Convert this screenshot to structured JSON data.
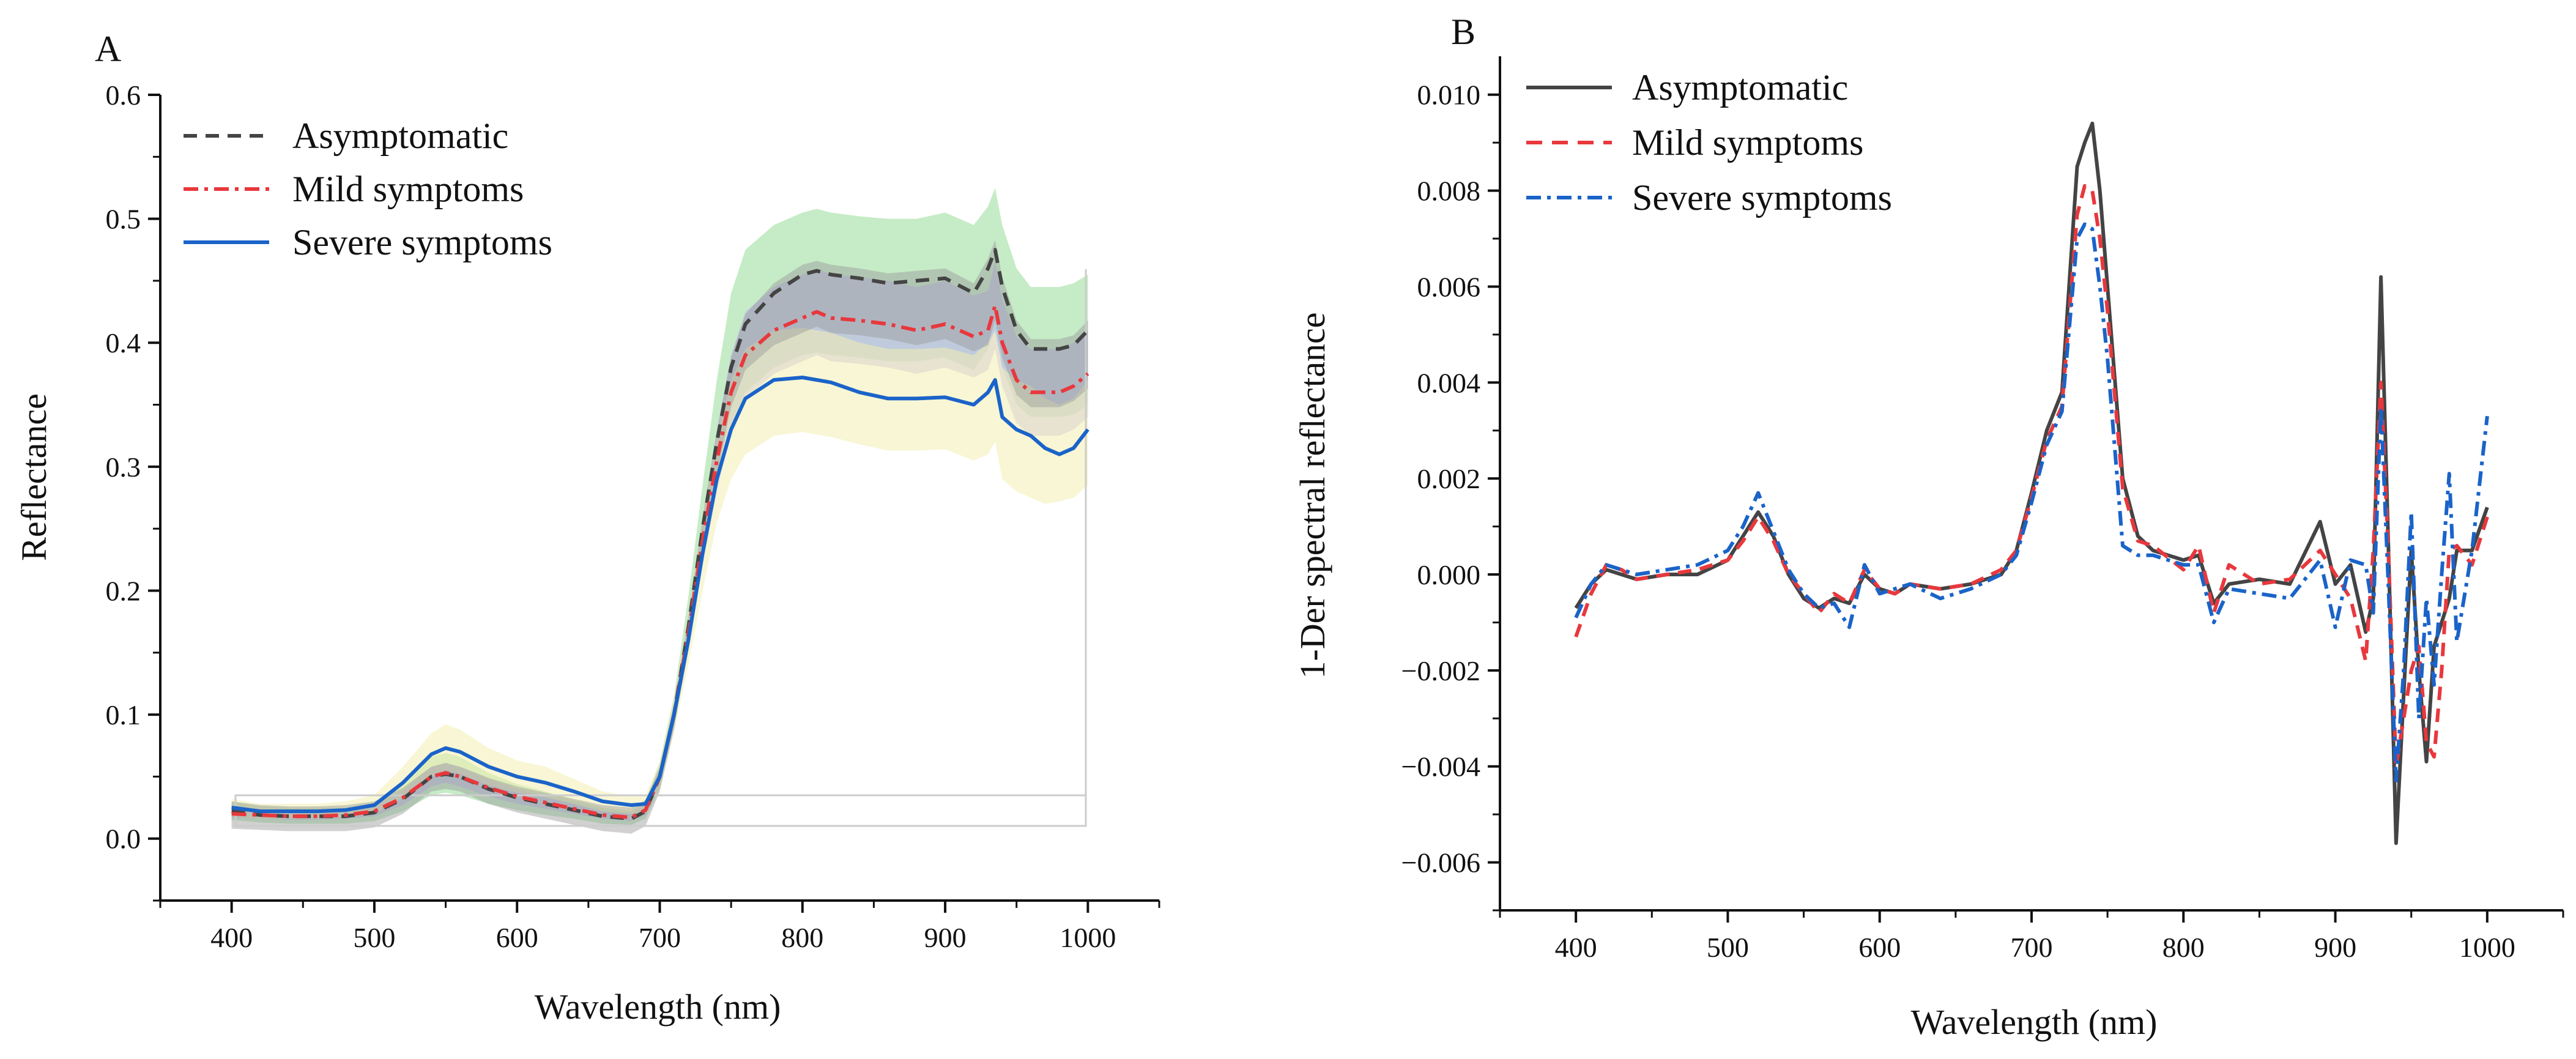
{
  "colors": {
    "asym": "#444444",
    "mild": "#e8383d",
    "severe": "#1a63c9",
    "band_green": "#9fe0a0",
    "band_purple": "#b9b0ee",
    "band_yellow": "#f2efb0",
    "band_grey": "#9a9a9a"
  },
  "chart_data": [
    {
      "panel": "A",
      "type": "line",
      "xlabel": "Wavelength (nm)",
      "ylabel": "Reflectance",
      "xlim": [
        350,
        1050
      ],
      "ylim": [
        -0.05,
        0.6
      ],
      "xticks": [
        400,
        500,
        600,
        700,
        800,
        900,
        1000
      ],
      "yticks": [
        0.0,
        0.1,
        0.2,
        0.3,
        0.4,
        0.5,
        0.6
      ],
      "xtick_labels": [
        "400",
        "500",
        "600",
        "700",
        "800",
        "900",
        "1000"
      ],
      "ytick_labels": [
        "0.0",
        "0.1",
        "0.2",
        "0.3",
        "0.4",
        "0.5",
        "0.6"
      ],
      "legend": [
        "Asymptomatic",
        "Mild symptoms",
        "Severe symptoms"
      ],
      "legend_position": "top-left",
      "x": [
        400,
        420,
        440,
        460,
        480,
        500,
        520,
        540,
        550,
        560,
        580,
        600,
        620,
        640,
        660,
        680,
        690,
        700,
        710,
        720,
        730,
        740,
        750,
        760,
        780,
        800,
        810,
        820,
        840,
        860,
        880,
        900,
        920,
        930,
        935,
        940,
        950,
        960,
        970,
        980,
        990,
        1000
      ],
      "series": [
        {
          "name": "Asymptomatic",
          "style": "dashed",
          "values": [
            0.022,
            0.019,
            0.018,
            0.018,
            0.018,
            0.021,
            0.032,
            0.05,
            0.052,
            0.05,
            0.04,
            0.033,
            0.028,
            0.023,
            0.018,
            0.016,
            0.022,
            0.05,
            0.1,
            0.17,
            0.25,
            0.32,
            0.38,
            0.415,
            0.44,
            0.455,
            0.458,
            0.455,
            0.452,
            0.448,
            0.45,
            0.452,
            0.44,
            0.46,
            0.475,
            0.445,
            0.41,
            0.395,
            0.395,
            0.395,
            0.398,
            0.41
          ]
        },
        {
          "name": "Mild symptoms",
          "style": "dash-dot",
          "values": [
            0.02,
            0.019,
            0.018,
            0.018,
            0.019,
            0.022,
            0.033,
            0.05,
            0.053,
            0.05,
            0.041,
            0.034,
            0.029,
            0.024,
            0.019,
            0.017,
            0.023,
            0.05,
            0.1,
            0.165,
            0.24,
            0.305,
            0.36,
            0.39,
            0.41,
            0.42,
            0.425,
            0.42,
            0.418,
            0.415,
            0.41,
            0.415,
            0.405,
            0.41,
            0.43,
            0.4,
            0.37,
            0.36,
            0.36,
            0.36,
            0.365,
            0.375
          ]
        },
        {
          "name": "Severe symptoms",
          "style": "solid",
          "values": [
            0.025,
            0.022,
            0.022,
            0.022,
            0.023,
            0.027,
            0.045,
            0.068,
            0.073,
            0.07,
            0.058,
            0.05,
            0.045,
            0.038,
            0.03,
            0.027,
            0.028,
            0.05,
            0.1,
            0.16,
            0.23,
            0.29,
            0.33,
            0.355,
            0.37,
            0.372,
            0.37,
            0.368,
            0.36,
            0.355,
            0.355,
            0.356,
            0.35,
            0.36,
            0.37,
            0.34,
            0.33,
            0.325,
            0.315,
            0.31,
            0.315,
            0.33
          ]
        }
      ],
      "bands": [
        {
          "name": "Asymptomatic range",
          "color_key": "band_green",
          "lower": [
            0.015,
            0.013,
            0.012,
            0.012,
            0.012,
            0.014,
            0.022,
            0.035,
            0.037,
            0.035,
            0.028,
            0.023,
            0.019,
            0.016,
            0.012,
            0.011,
            0.016,
            0.04,
            0.09,
            0.15,
            0.22,
            0.28,
            0.33,
            0.36,
            0.38,
            0.39,
            0.392,
            0.39,
            0.388,
            0.385,
            0.385,
            0.388,
            0.378,
            0.395,
            0.41,
            0.38,
            0.35,
            0.34,
            0.34,
            0.34,
            0.342,
            0.35
          ],
          "upper": [
            0.03,
            0.026,
            0.025,
            0.025,
            0.025,
            0.029,
            0.043,
            0.066,
            0.069,
            0.066,
            0.053,
            0.044,
            0.038,
            0.031,
            0.025,
            0.022,
            0.03,
            0.062,
            0.115,
            0.195,
            0.285,
            0.37,
            0.44,
            0.475,
            0.495,
            0.505,
            0.508,
            0.505,
            0.502,
            0.5,
            0.5,
            0.505,
            0.495,
            0.51,
            0.525,
            0.495,
            0.46,
            0.445,
            0.445,
            0.445,
            0.448,
            0.455
          ]
        },
        {
          "name": "Mild symptoms range",
          "color_key": "band_purple",
          "lower": [
            0.017,
            0.016,
            0.015,
            0.015,
            0.016,
            0.018,
            0.027,
            0.042,
            0.045,
            0.042,
            0.034,
            0.028,
            0.024,
            0.02,
            0.016,
            0.014,
            0.019,
            0.044,
            0.09,
            0.15,
            0.22,
            0.28,
            0.33,
            0.355,
            0.375,
            0.385,
            0.39,
            0.385,
            0.383,
            0.38,
            0.375,
            0.38,
            0.372,
            0.378,
            0.395,
            0.365,
            0.335,
            0.325,
            0.325,
            0.325,
            0.33,
            0.34
          ],
          "upper": [
            0.023,
            0.022,
            0.021,
            0.021,
            0.022,
            0.026,
            0.039,
            0.058,
            0.061,
            0.058,
            0.048,
            0.04,
            0.034,
            0.028,
            0.022,
            0.02,
            0.027,
            0.058,
            0.11,
            0.18,
            0.26,
            0.33,
            0.39,
            0.425,
            0.445,
            0.455,
            0.46,
            0.455,
            0.453,
            0.45,
            0.445,
            0.45,
            0.438,
            0.442,
            0.465,
            0.435,
            0.405,
            0.395,
            0.395,
            0.395,
            0.4,
            0.41
          ]
        },
        {
          "name": "Severe symptoms range",
          "color_key": "band_yellow",
          "lower": [
            0.018,
            0.016,
            0.016,
            0.016,
            0.017,
            0.02,
            0.033,
            0.05,
            0.055,
            0.052,
            0.043,
            0.037,
            0.033,
            0.028,
            0.022,
            0.02,
            0.021,
            0.04,
            0.085,
            0.14,
            0.2,
            0.255,
            0.29,
            0.31,
            0.325,
            0.328,
            0.326,
            0.324,
            0.318,
            0.313,
            0.313,
            0.314,
            0.305,
            0.31,
            0.32,
            0.29,
            0.28,
            0.275,
            0.27,
            0.272,
            0.275,
            0.285
          ],
          "upper": [
            0.032,
            0.028,
            0.028,
            0.028,
            0.03,
            0.035,
            0.058,
            0.085,
            0.092,
            0.088,
            0.073,
            0.063,
            0.058,
            0.048,
            0.038,
            0.034,
            0.035,
            0.062,
            0.115,
            0.18,
            0.26,
            0.325,
            0.37,
            0.395,
            0.41,
            0.412,
            0.41,
            0.408,
            0.4,
            0.395,
            0.395,
            0.396,
            0.39,
            0.4,
            0.41,
            0.38,
            0.37,
            0.365,
            0.355,
            0.35,
            0.355,
            0.37
          ]
        }
      ]
    },
    {
      "panel": "B",
      "type": "line",
      "xlabel": "Wavelength (nm)",
      "ylabel": "1-Der spectral reflectance",
      "xlim": [
        350,
        1050
      ],
      "ylim": [
        -0.007,
        0.0108
      ],
      "xticks": [
        400,
        500,
        600,
        700,
        800,
        900,
        1000
      ],
      "yticks": [
        -0.006,
        -0.004,
        -0.002,
        0.0,
        0.002,
        0.004,
        0.006,
        0.008,
        0.01
      ],
      "xtick_labels": [
        "400",
        "500",
        "600",
        "700",
        "800",
        "900",
        "1000"
      ],
      "ytick_labels": [
        "−0.006",
        "−0.004",
        "−0.002",
        "0.000",
        "0.002",
        "0.004",
        "0.006",
        "0.008",
        "0.010"
      ],
      "legend": [
        "Asymptomatic",
        "Mild symptoms",
        "Severe symptoms"
      ],
      "legend_position": "top-left",
      "series": [
        {
          "name": "Asymptomatic",
          "style": "solid",
          "x": [
            400,
            410,
            420,
            430,
            440,
            460,
            480,
            500,
            510,
            520,
            530,
            540,
            550,
            560,
            570,
            580,
            590,
            600,
            610,
            620,
            640,
            660,
            680,
            690,
            700,
            710,
            720,
            730,
            735,
            740,
            745,
            750,
            760,
            770,
            780,
            800,
            810,
            820,
            830,
            850,
            870,
            890,
            900,
            910,
            920,
            925,
            930,
            935,
            940,
            945,
            950,
            955,
            960,
            965,
            970,
            975,
            980,
            990,
            1000
          ],
          "values": [
            -0.0007,
            -0.0002,
            0.0001,
            0.0,
            -0.0001,
            0.0,
            0.0,
            0.0003,
            0.0008,
            0.0013,
            0.0008,
            0.0,
            -0.0005,
            -0.0007,
            -0.0005,
            -0.0006,
            0.0,
            -0.0003,
            -0.0004,
            -0.0002,
            -0.0003,
            -0.0002,
            0.0,
            0.0005,
            0.0017,
            0.003,
            0.0038,
            0.0085,
            0.009,
            0.0094,
            0.008,
            0.006,
            0.002,
            0.0008,
            0.0005,
            0.0003,
            0.0004,
            -0.0006,
            -0.0002,
            -0.0001,
            -0.0002,
            0.0011,
            -0.0002,
            0.0002,
            -0.0012,
            -0.0005,
            0.0062,
            0.0005,
            -0.0056,
            -0.0025,
            0.0005,
            -0.002,
            -0.0039,
            -0.0015,
            -0.001,
            -0.0005,
            0.0005,
            0.0005,
            0.0014
          ]
        },
        {
          "name": "Mild symptoms",
          "style": "dashed",
          "x": [
            400,
            410,
            420,
            430,
            440,
            460,
            480,
            500,
            510,
            520,
            530,
            540,
            550,
            560,
            570,
            580,
            590,
            600,
            610,
            620,
            640,
            660,
            680,
            690,
            700,
            710,
            720,
            730,
            735,
            740,
            745,
            750,
            760,
            770,
            780,
            800,
            810,
            820,
            830,
            850,
            870,
            890,
            900,
            910,
            920,
            925,
            930,
            935,
            940,
            945,
            950,
            955,
            960,
            965,
            970,
            975,
            980,
            990,
            1000
          ],
          "values": [
            -0.0013,
            -0.0004,
            0.0002,
            0.0001,
            -0.0001,
            0.0,
            0.0001,
            0.0003,
            0.0007,
            0.0012,
            0.0007,
            0.0,
            -0.0004,
            -0.0008,
            -0.0004,
            -0.0006,
            0.0001,
            -0.0003,
            -0.0004,
            -0.0002,
            -0.0003,
            -0.0002,
            0.0001,
            0.0005,
            0.0016,
            0.0028,
            0.0035,
            0.0075,
            0.0081,
            0.008,
            0.007,
            0.0055,
            0.0018,
            0.0007,
            0.0006,
            0.0001,
            0.0006,
            -0.0008,
            0.0002,
            -0.0002,
            -0.0001,
            0.0005,
            0.0,
            -0.0005,
            -0.0018,
            0.0005,
            0.004,
            0.0004,
            -0.004,
            -0.003,
            -0.002,
            -0.0015,
            -0.0035,
            -0.0038,
            -0.002,
            0.0005,
            0.0006,
            0.0002,
            0.0012
          ]
        },
        {
          "name": "Severe symptoms",
          "style": "dash-dot",
          "x": [
            400,
            410,
            420,
            430,
            440,
            460,
            480,
            500,
            510,
            520,
            530,
            540,
            550,
            560,
            570,
            580,
            590,
            600,
            610,
            620,
            640,
            660,
            680,
            690,
            700,
            710,
            720,
            730,
            735,
            740,
            745,
            750,
            760,
            770,
            780,
            800,
            810,
            820,
            830,
            850,
            870,
            890,
            900,
            910,
            920,
            925,
            930,
            935,
            940,
            945,
            950,
            955,
            960,
            965,
            970,
            975,
            980,
            990,
            1000
          ],
          "values": [
            -0.0009,
            -0.0002,
            0.0002,
            0.0001,
            0.0,
            0.0001,
            0.0002,
            0.0005,
            0.001,
            0.0017,
            0.0009,
            0.0001,
            -0.0004,
            -0.0007,
            -0.0006,
            -0.0011,
            0.0002,
            -0.0004,
            -0.0003,
            -0.0002,
            -0.0005,
            -0.0003,
            0.0,
            0.0004,
            0.0015,
            0.0027,
            0.0034,
            0.007,
            0.0073,
            0.0072,
            0.006,
            0.0045,
            0.0006,
            0.0004,
            0.0004,
            0.0002,
            0.0002,
            -0.001,
            -0.0003,
            -0.0004,
            -0.0005,
            0.0003,
            -0.0011,
            0.0003,
            0.0002,
            -0.0008,
            0.0035,
            -0.0003,
            -0.0043,
            -0.002,
            0.0013,
            -0.003,
            -0.0005,
            -0.0023,
            0.0,
            0.0021,
            -0.0014,
            0.0005,
            0.0033
          ]
        }
      ]
    }
  ]
}
